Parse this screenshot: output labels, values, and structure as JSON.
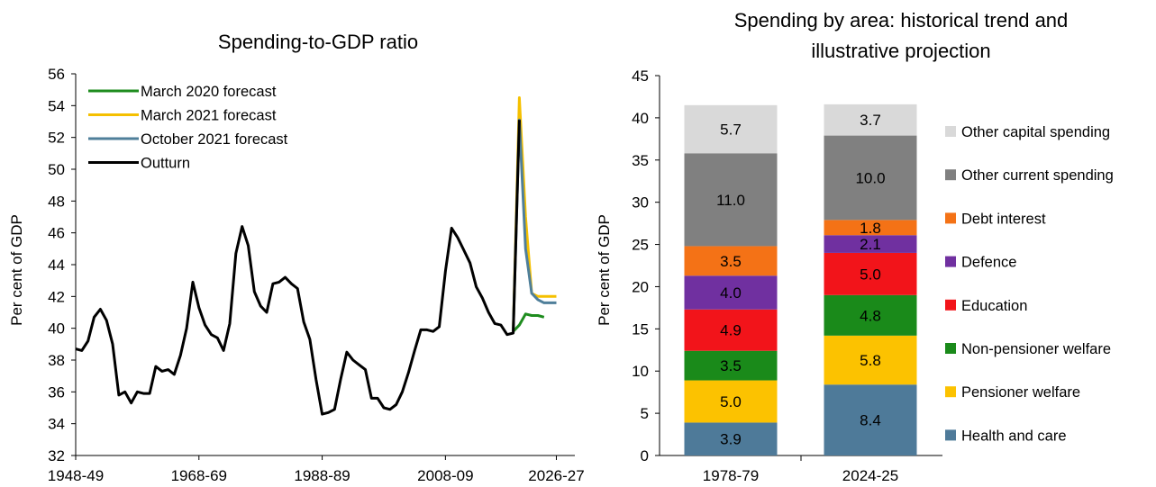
{
  "chart_data": [
    {
      "type": "line",
      "title": "Spending-to-GDP ratio",
      "xlabel": "",
      "ylabel": "Per cent of GDP",
      "ylim": [
        32,
        56
      ],
      "yticks": [
        32,
        34,
        36,
        38,
        40,
        42,
        44,
        46,
        48,
        50,
        52,
        54,
        56
      ],
      "xlim": [
        1948,
        2029
      ],
      "xticks": [
        {
          "label": "1948-49",
          "x": 1948
        },
        {
          "label": "1968-69",
          "x": 1968
        },
        {
          "label": "1988-89",
          "x": 1988
        },
        {
          "label": "2008-09",
          "x": 2008
        },
        {
          "label": "2026-27",
          "x": 2026
        }
      ],
      "legend_position": "top-left",
      "series": [
        {
          "name": "March 2020 forecast",
          "color": "#1e8c1e",
          "x": [
            2019,
            2020,
            2021,
            2022,
            2023,
            2024
          ],
          "y": [
            39.8,
            40.2,
            40.9,
            40.8,
            40.8,
            40.7
          ]
        },
        {
          "name": "March 2021 forecast",
          "color": "#f5c000",
          "x": [
            2019,
            2020,
            2021,
            2022,
            2023,
            2024,
            2025,
            2026
          ],
          "y": [
            39.8,
            54.5,
            47.0,
            42.2,
            42.0,
            42.0,
            42.0,
            42.0
          ]
        },
        {
          "name": "October 2021 forecast",
          "color": "#4f7f9a",
          "x": [
            2019,
            2020,
            2021,
            2022,
            2023,
            2024,
            2025,
            2026
          ],
          "y": [
            39.8,
            53.1,
            45.0,
            42.2,
            41.8,
            41.6,
            41.6,
            41.6
          ]
        },
        {
          "name": "Outturn",
          "color": "#000000",
          "x": [
            1948,
            1949,
            1950,
            1951,
            1952,
            1953,
            1954,
            1955,
            1956,
            1957,
            1958,
            1959,
            1960,
            1961,
            1962,
            1963,
            1964,
            1965,
            1966,
            1967,
            1968,
            1969,
            1970,
            1971,
            1972,
            1973,
            1974,
            1975,
            1976,
            1977,
            1978,
            1979,
            1980,
            1981,
            1982,
            1983,
            1984,
            1985,
            1986,
            1987,
            1988,
            1989,
            1990,
            1991,
            1992,
            1993,
            1994,
            1995,
            1996,
            1997,
            1998,
            1999,
            2000,
            2001,
            2002,
            2003,
            2004,
            2005,
            2006,
            2007,
            2008,
            2009,
            2010,
            2011,
            2012,
            2013,
            2014,
            2015,
            2016,
            2017,
            2018,
            2019,
            2020
          ],
          "y": [
            38.7,
            38.6,
            39.2,
            40.7,
            41.2,
            40.5,
            39.0,
            35.8,
            36.0,
            35.3,
            36.0,
            35.9,
            35.9,
            37.6,
            37.3,
            37.4,
            37.1,
            38.3,
            40.0,
            42.9,
            41.3,
            40.2,
            39.6,
            39.4,
            38.6,
            40.3,
            44.7,
            46.4,
            45.2,
            42.3,
            41.4,
            41.0,
            42.8,
            42.9,
            43.2,
            42.8,
            42.5,
            40.4,
            39.3,
            36.8,
            34.6,
            34.7,
            34.9,
            36.8,
            38.5,
            38.0,
            37.7,
            37.4,
            35.6,
            35.6,
            35.0,
            34.9,
            35.2,
            36.0,
            37.2,
            38.6,
            39.9,
            39.9,
            39.8,
            40.1,
            43.6,
            46.3,
            45.7,
            44.9,
            44.1,
            42.6,
            41.9,
            41.0,
            40.3,
            40.2,
            39.6,
            39.7,
            53.1
          ]
        }
      ]
    },
    {
      "type": "bar",
      "stacked": true,
      "title_lines": [
        "Spending by area: historical trend and",
        "illustrative projection"
      ],
      "xlabel": "",
      "ylabel": "Per cent of GDP",
      "ylim": [
        0,
        45
      ],
      "yticks": [
        0,
        5,
        10,
        15,
        20,
        25,
        30,
        35,
        40,
        45
      ],
      "categories": [
        "1978-79",
        "2024-25"
      ],
      "legend_position": "right",
      "series": [
        {
          "name": "Health and care",
          "color": "#4e7a99",
          "values": [
            3.9,
            8.4
          ],
          "labels": [
            "3.9",
            "8.4"
          ]
        },
        {
          "name": "Pensioner welfare",
          "color": "#fcc200",
          "values": [
            5.0,
            5.8
          ],
          "labels": [
            "5.0",
            "5.8"
          ]
        },
        {
          "name": "Non-pensioner welfare",
          "color": "#1a8a1a",
          "values": [
            3.5,
            4.8
          ],
          "labels": [
            "3.5",
            "4.8"
          ]
        },
        {
          "name": "Education",
          "color": "#f2141a",
          "values": [
            4.9,
            5.0
          ],
          "labels": [
            "4.9",
            "5.0"
          ]
        },
        {
          "name": "Defence",
          "color": "#7030a0",
          "values": [
            4.0,
            2.1
          ],
          "labels": [
            "4.0",
            "2.1"
          ]
        },
        {
          "name": "Debt interest",
          "color": "#f47216",
          "values": [
            3.5,
            1.8
          ],
          "labels": [
            "3.5",
            "1.8"
          ]
        },
        {
          "name": "Other current spending",
          "color": "#808080",
          "values": [
            11.0,
            10.0
          ],
          "labels": [
            "11.0",
            "10.0"
          ]
        },
        {
          "name": "Other capital spending",
          "color": "#d9d9d9",
          "values": [
            5.7,
            3.7
          ],
          "labels": [
            "5.7",
            "3.7"
          ]
        }
      ]
    }
  ]
}
